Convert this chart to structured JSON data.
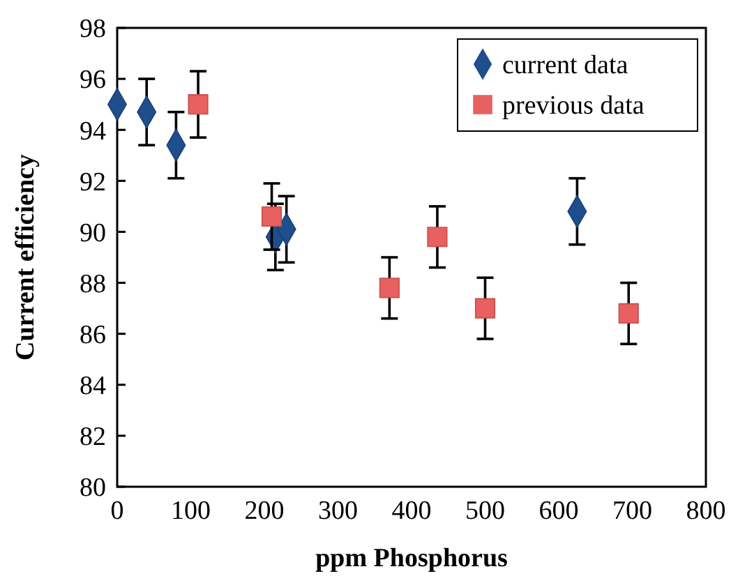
{
  "chart_data": {
    "type": "scatter",
    "xlabel": "ppm Phosphorus",
    "ylabel": "Current efficiency",
    "xlim": [
      0,
      800
    ],
    "xticks": [
      0,
      100,
      200,
      300,
      400,
      500,
      600,
      700,
      800
    ],
    "ylim": [
      80,
      98
    ],
    "yticks": [
      80,
      82,
      84,
      86,
      88,
      90,
      92,
      94,
      96,
      98
    ],
    "legend": "top right",
    "grid": false,
    "series": [
      {
        "name": "current data",
        "color": "#1f4e8c",
        "marker": "diamond",
        "x": [
          0,
          40,
          80,
          215,
          230,
          625
        ],
        "values": [
          95,
          94.7,
          93.4,
          89.8,
          90.1,
          90.8
        ],
        "errors": [
          null,
          1.3,
          1.3,
          1.3,
          1.3,
          1.3
        ]
      },
      {
        "name": "previous data",
        "color": "#e86060",
        "marker": "square",
        "x": [
          110,
          210,
          370,
          435,
          500,
          695
        ],
        "values": [
          95,
          90.6,
          87.8,
          89.8,
          87,
          86.8
        ],
        "errors": [
          1.3,
          1.3,
          1.2,
          1.2,
          1.2,
          1.2
        ]
      }
    ]
  }
}
